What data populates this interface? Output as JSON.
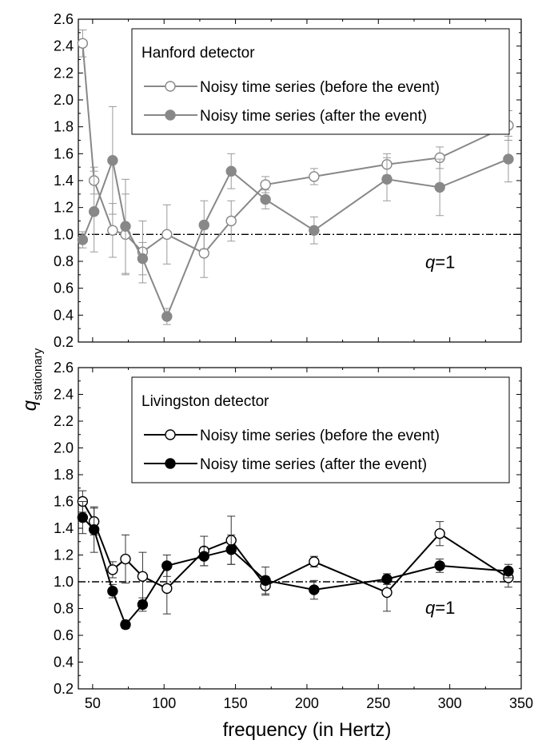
{
  "figure": {
    "ylabel_main": "q",
    "ylabel_sub": "stationary",
    "xlabel": "frequency (in Hertz)"
  },
  "chart_data": [
    {
      "type": "line",
      "title": "",
      "xlim": [
        40,
        350
      ],
      "ylim": [
        0.2,
        2.6
      ],
      "xticks": [
        50,
        100,
        150,
        200,
        250,
        300,
        350
      ],
      "yticks": [
        0.2,
        0.4,
        0.6,
        0.8,
        1.0,
        1.2,
        1.4,
        1.6,
        1.8,
        2.0,
        2.2,
        2.4,
        2.6
      ],
      "ytick_labels": [
        "0.2",
        "0.4",
        "0.6",
        "0.8",
        "1.0",
        "1.2",
        "1.4",
        "1.6",
        "1.8",
        "2.0",
        "2.2",
        "2.4",
        "2.6"
      ],
      "legend_title": "Hanford detector",
      "legend_position": "top-right",
      "line_color": "#888888",
      "reference_line": {
        "y": 1.0,
        "label_main": "q",
        "label_rest": "=1",
        "style": "dash-dot"
      },
      "series": [
        {
          "name": "Noisy time series (before the event)",
          "marker": "open-circle",
          "x": [
            43,
            51,
            64,
            73,
            85,
            102,
            128,
            147,
            171,
            205,
            256,
            293,
            341
          ],
          "y": [
            2.42,
            1.4,
            1.03,
            1.0,
            0.87,
            1.0,
            0.86,
            1.1,
            1.37,
            1.43,
            1.52,
            1.57,
            1.81
          ],
          "err": [
            0.1,
            0.1,
            0.2,
            0.3,
            0.23,
            0.22,
            0.18,
            0.15,
            0.06,
            0.06,
            0.08,
            0.08,
            0.11
          ]
        },
        {
          "name": "Noisy time series (after the event)",
          "marker": "filled-circle",
          "x": [
            43,
            51,
            64,
            73,
            85,
            102,
            128,
            147,
            171,
            205,
            256,
            293,
            341
          ],
          "y": [
            0.96,
            1.17,
            1.55,
            1.06,
            0.82,
            0.39,
            1.07,
            1.47,
            1.26,
            1.03,
            1.41,
            1.35,
            1.56
          ],
          "err": [
            0.06,
            0.3,
            0.4,
            0.35,
            0.12,
            0.06,
            0.18,
            0.13,
            0.07,
            0.1,
            0.16,
            0.21,
            0.17
          ]
        }
      ]
    },
    {
      "type": "line",
      "title": "",
      "xlim": [
        40,
        350
      ],
      "ylim": [
        0.2,
        2.6
      ],
      "xticks": [
        50,
        100,
        150,
        200,
        250,
        300,
        350
      ],
      "xtick_labels": [
        "50",
        "100",
        "150",
        "200",
        "250",
        "300",
        "350"
      ],
      "yticks": [
        0.2,
        0.4,
        0.6,
        0.8,
        1.0,
        1.2,
        1.4,
        1.6,
        1.8,
        2.0,
        2.2,
        2.4,
        2.6
      ],
      "ytick_labels": [
        "0.2",
        "0.4",
        "0.6",
        "0.8",
        "1.0",
        "1.2",
        "1.4",
        "1.6",
        "1.8",
        "2.0",
        "2.2",
        "2.4",
        "2.6"
      ],
      "legend_title": "Livingston detector",
      "legend_position": "top-right",
      "line_color": "#000000",
      "reference_line": {
        "y": 1.0,
        "label_main": "q",
        "label_rest": "=1",
        "style": "dash-dot"
      },
      "series": [
        {
          "name": "Noisy time series (before the event)",
          "marker": "open-circle",
          "x": [
            43,
            51,
            64,
            73,
            85,
            102,
            128,
            147,
            171,
            205,
            256,
            293,
            341
          ],
          "y": [
            1.6,
            1.45,
            1.09,
            1.17,
            1.04,
            0.95,
            1.23,
            1.31,
            0.97,
            1.15,
            0.92,
            1.36,
            1.03
          ],
          "err": [
            0.08,
            0.1,
            0.06,
            0.18,
            0.18,
            0.19,
            0.11,
            0.18,
            0.07,
            0.04,
            0.14,
            0.09,
            0.07
          ]
        },
        {
          "name": "Noisy time series (after the event)",
          "marker": "filled-circle",
          "x": [
            43,
            51,
            64,
            73,
            85,
            102,
            128,
            147,
            171,
            205,
            256,
            293,
            341
          ],
          "y": [
            1.48,
            1.39,
            0.93,
            0.68,
            0.83,
            1.12,
            1.19,
            1.24,
            1.01,
            0.94,
            1.02,
            1.12,
            1.08
          ],
          "err": [
            0.12,
            0.17,
            0.05,
            0.03,
            0.05,
            0.08,
            0.07,
            0.11,
            0.1,
            0.07,
            0.04,
            0.05,
            0.05
          ]
        }
      ]
    }
  ]
}
